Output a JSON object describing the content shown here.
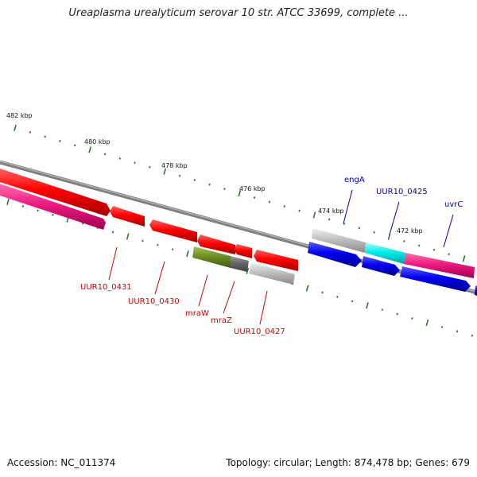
{
  "title": "Ureaplasma urealyticum serovar 10 str. ATCC 33699, complete ...",
  "footer": {
    "accession": "Accession: NC_011374",
    "topology": "Topology: circular; Length: 874,478 bp; Genes: 679"
  },
  "scale_labels": [
    "482 kbp",
    "480 kbp",
    "478 kbp",
    "476 kbp",
    "474 kbp",
    "472 kbp"
  ],
  "genes": {
    "uur10_0431": "UUR10_0431",
    "uur10_0430": "UUR10_0430",
    "mraW": "mraW",
    "mraZ": "mraZ",
    "uur10_0427": "UUR10_0427",
    "engA": "engA",
    "uur10_0425": "UUR10_0425",
    "uvrC": "uvrC"
  },
  "colors": {
    "red_label": "#cc0000",
    "blue_label": "#0000aa",
    "tick": "#2a7a2a",
    "backbone": "#808080"
  }
}
